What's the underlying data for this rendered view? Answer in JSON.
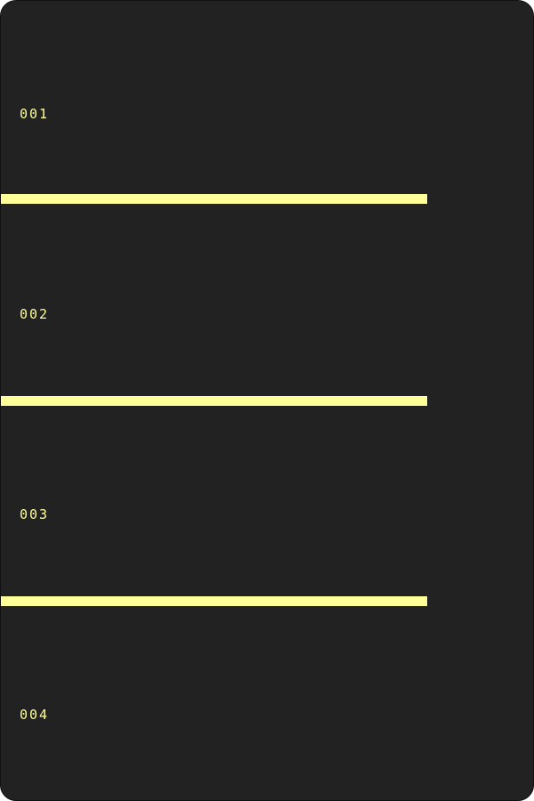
{
  "list": {
    "items": [
      {
        "label": "001"
      },
      {
        "label": "002"
      },
      {
        "label": "003"
      },
      {
        "label": "004"
      }
    ]
  },
  "colors": {
    "background": "#222222",
    "accent": "#ffff99",
    "border": "#111111"
  }
}
